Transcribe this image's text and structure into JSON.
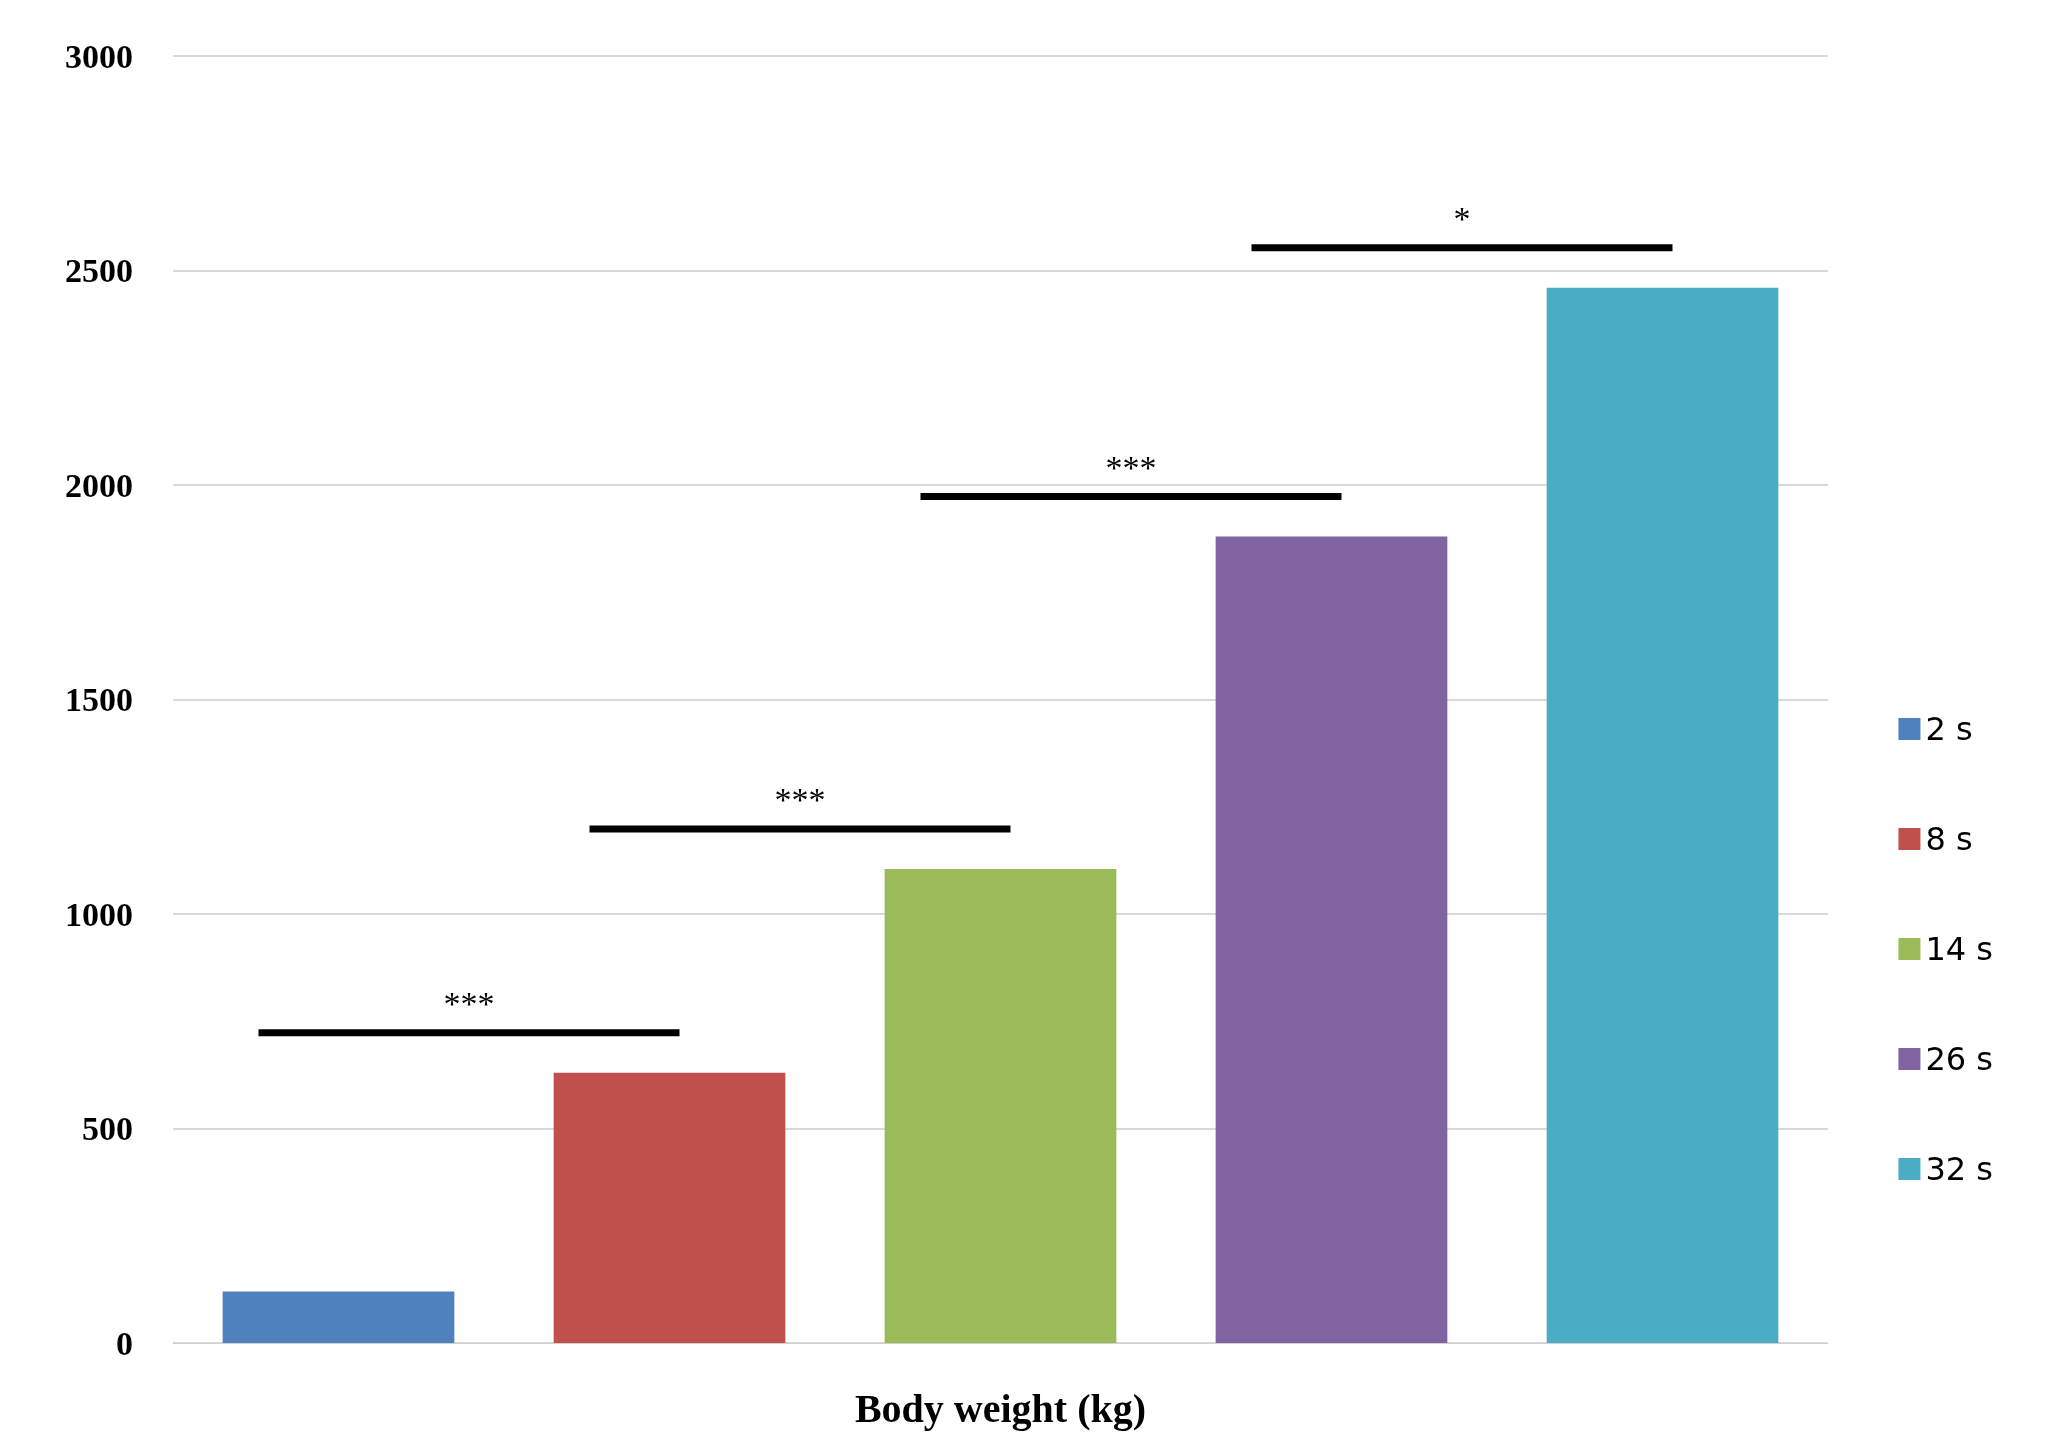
{
  "chart_data": {
    "type": "bar",
    "xlabel": "Body weight (kg)",
    "categories": [
      null,
      null,
      null,
      null,
      null
    ],
    "series": [
      {
        "name": "2 s",
        "color": "#4f81bd",
        "values": [
          120,
          null,
          null,
          null,
          null
        ]
      },
      {
        "name": "8 s",
        "color": "#c0504d",
        "values": [
          null,
          630,
          null,
          null,
          null
        ]
      },
      {
        "name": "14 s",
        "color": "#9bbb59",
        "values": [
          null,
          null,
          1105,
          null,
          null
        ]
      },
      {
        "name": "26 s",
        "color": "#8064a2",
        "values": [
          null,
          null,
          null,
          1880,
          null
        ]
      },
      {
        "name": "32 s",
        "color": "#4bacc6",
        "values": [
          null,
          null,
          null,
          null,
          2460
        ]
      }
    ],
    "ylim": [
      0,
      3000
    ],
    "yticks": [
      0,
      500,
      1000,
      1500,
      2000,
      2500,
      3000
    ],
    "grid": "y",
    "legend": "right",
    "annotations": [
      "***",
      "***",
      "***",
      "*"
    ]
  }
}
